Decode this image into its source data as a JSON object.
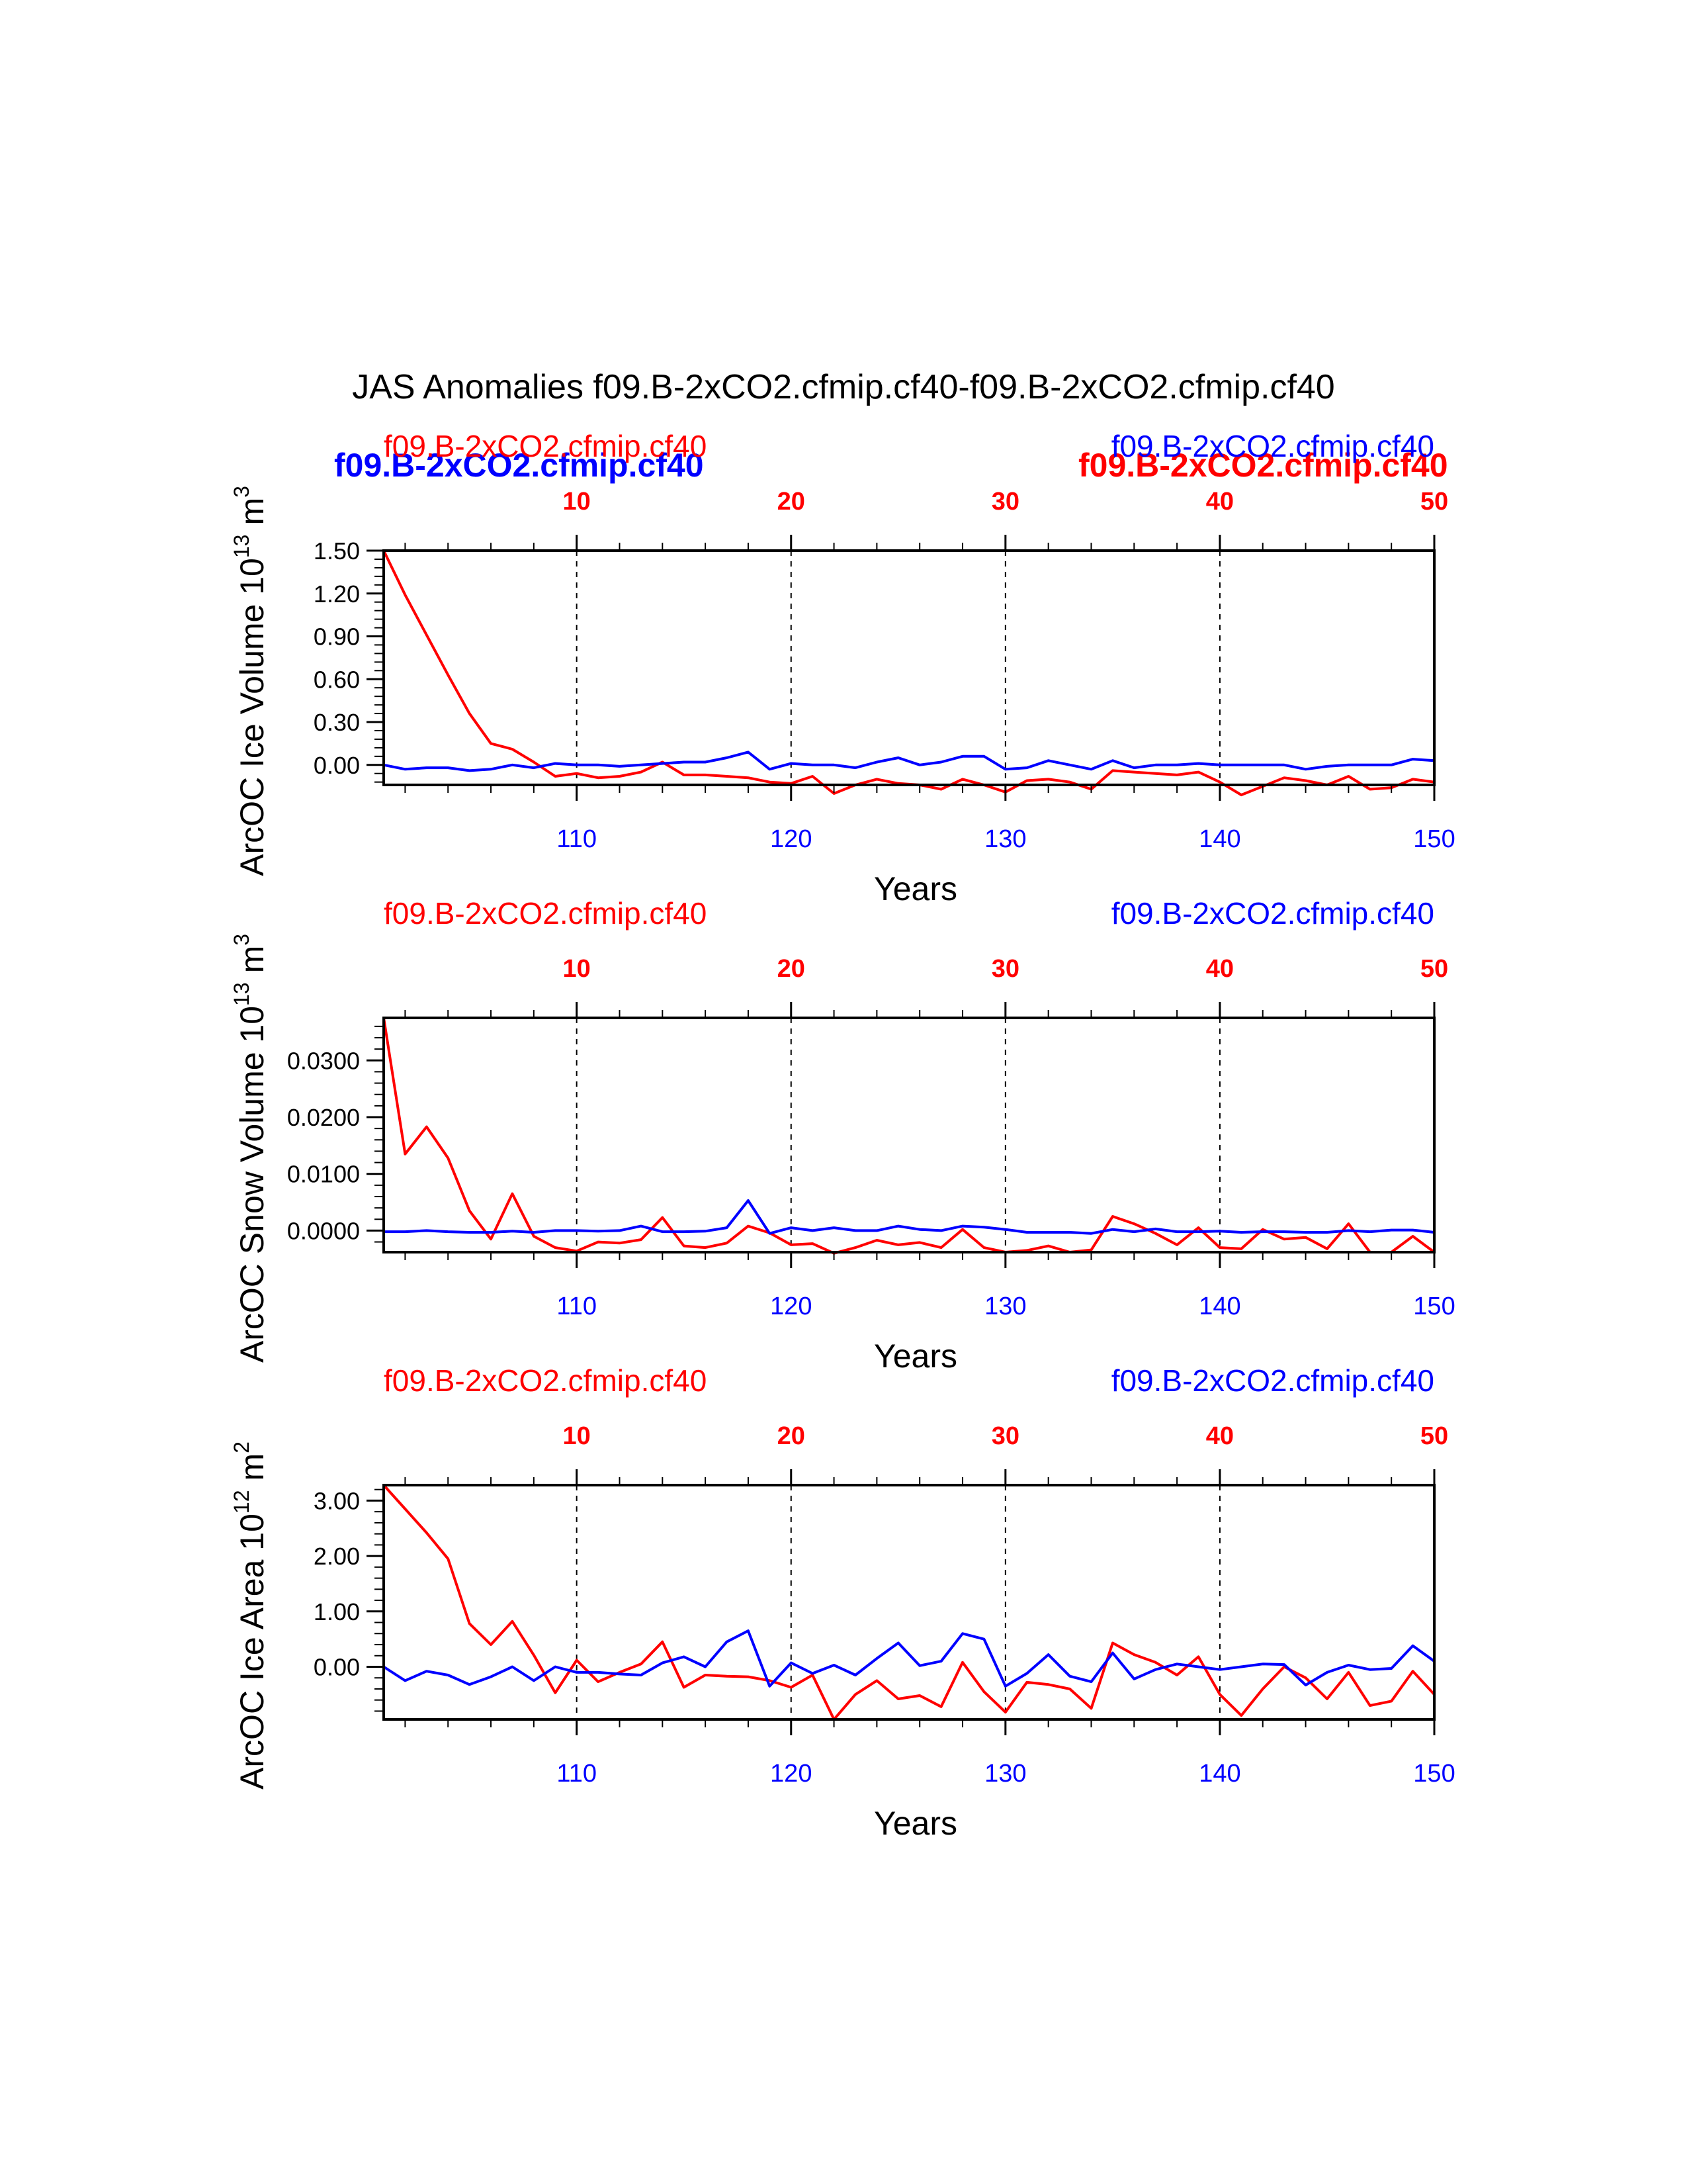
{
  "figure": {
    "title": "JAS Anomalies f09.B-2xCO2.cfmip.cf40-f09.B-2xCO2.cfmip.cf40",
    "colors": {
      "case1": "#ff0000",
      "case2": "#0000ff",
      "axes": "#000000"
    },
    "overlap_legend": {
      "case2_bold": "f09.B-2xCO2.cfmip.cf40",
      "case1_bold": "f09.B-2xCO2.cfmip.cf40"
    }
  },
  "chart_data": [
    {
      "type": "line",
      "ylabel": "ArcOC Ice Volume 10^13 m^3",
      "ylabel_main": "ArcOC Ice Volume 10",
      "ylabel_exp": "13",
      "ylabel_unit": "m",
      "ylabel_unit_exp": "3",
      "xlabel": "Years",
      "case_left": "f09.B-2xCO2.cfmip.cf40",
      "case_right": "f09.B-2xCO2.cfmip.cf40",
      "ylim": [
        -0.14,
        1.5
      ],
      "yticks": [
        1.5,
        1.2,
        0.9,
        0.6,
        0.3,
        0.0
      ],
      "ytick_labels": [
        "1.50",
        "1.20",
        "0.90",
        "0.60",
        "0.30",
        "0.00"
      ],
      "yminor_step": 0.06,
      "xlim_top": [
        1,
        50
      ],
      "xticks_top": [
        "10",
        "20",
        "30",
        "40",
        "50"
      ],
      "xlim_bottom": [
        101,
        150
      ],
      "xticks_bottom": [
        "110",
        "120",
        "130",
        "140",
        "150"
      ],
      "series": [
        {
          "name": "f09.B-2xCO2.cfmip.cf40 (red, years 1-50)",
          "color": "#ff0000",
          "values": [
            1.5,
            1.19,
            0.91,
            0.63,
            0.36,
            0.15,
            0.11,
            0.02,
            -0.08,
            -0.06,
            -0.09,
            -0.08,
            -0.05,
            0.02,
            -0.07,
            -0.07,
            -0.08,
            -0.09,
            -0.12,
            -0.13,
            -0.08,
            -0.2,
            -0.14,
            -0.1,
            -0.13,
            -0.14,
            -0.17,
            -0.1,
            -0.14,
            -0.19,
            -0.11,
            -0.1,
            -0.12,
            -0.17,
            -0.04,
            -0.05,
            -0.06,
            -0.07,
            -0.05,
            -0.12,
            -0.21,
            -0.15,
            -0.09,
            -0.11,
            -0.14,
            -0.08,
            -0.17,
            -0.16,
            -0.1,
            -0.12
          ]
        },
        {
          "name": "f09.B-2xCO2.cfmip.cf40 (blue, years 101-150)",
          "color": "#0000ff",
          "values": [
            0.0,
            -0.03,
            -0.02,
            -0.02,
            -0.04,
            -0.03,
            0.0,
            -0.02,
            0.01,
            0.0,
            0.0,
            -0.01,
            0.0,
            0.01,
            0.02,
            0.02,
            0.05,
            0.09,
            -0.03,
            0.01,
            0.0,
            0.0,
            -0.02,
            0.02,
            0.05,
            0.0,
            0.02,
            0.06,
            0.06,
            -0.03,
            -0.02,
            0.03,
            0.0,
            -0.03,
            0.03,
            -0.02,
            0.0,
            0.0,
            0.01,
            0.0,
            0.0,
            0.0,
            0.0,
            -0.03,
            -0.01,
            0.0,
            0.0,
            0.0,
            0.04,
            0.03
          ]
        }
      ]
    },
    {
      "type": "line",
      "ylabel": "ArcOC Snow Volume 10^13 m^3",
      "ylabel_main": "ArcOC Snow Volume 10",
      "ylabel_exp": "13",
      "ylabel_unit": "m",
      "ylabel_unit_exp": "3",
      "xlabel": "Years",
      "case_left": "f09.B-2xCO2.cfmip.cf40",
      "case_right": "f09.B-2xCO2.cfmip.cf40",
      "ylim": [
        -0.0038,
        0.0375
      ],
      "yticks": [
        0.03,
        0.02,
        0.01,
        0.0
      ],
      "ytick_labels": [
        "0.0300",
        "0.0200",
        "0.0100",
        "0.0000"
      ],
      "yminor_step": 0.002,
      "xlim_top": [
        1,
        50
      ],
      "xticks_top": [
        "10",
        "20",
        "30",
        "40",
        "50"
      ],
      "xlim_bottom": [
        101,
        150
      ],
      "xticks_bottom": [
        "110",
        "120",
        "130",
        "140",
        "150"
      ],
      "series": [
        {
          "name": "f09.B-2xCO2.cfmip.cf40 (red, years 1-50)",
          "color": "#ff0000",
          "values": [
            0.0375,
            0.0135,
            0.0183,
            0.0128,
            0.0035,
            -0.0015,
            0.0065,
            -0.001,
            -0.003,
            -0.0036,
            -0.002,
            -0.0022,
            -0.0016,
            0.0023,
            -0.0027,
            -0.003,
            -0.0022,
            0.0008,
            -0.0004,
            -0.0025,
            -0.0023,
            -0.004,
            -0.003,
            -0.0017,
            -0.0025,
            -0.0021,
            -0.003,
            0.0002,
            -0.003,
            -0.0038,
            -0.0035,
            -0.0027,
            -0.0038,
            -0.0034,
            0.0025,
            0.0012,
            -0.0005,
            -0.0025,
            0.0005,
            -0.003,
            -0.0032,
            0.0002,
            -0.0015,
            -0.0012,
            -0.0032,
            0.0012,
            -0.0038,
            -0.0038,
            -0.001,
            -0.0038
          ]
        },
        {
          "name": "f09.B-2xCO2.cfmip.cf40 (blue, years 101-150)",
          "color": "#0000ff",
          "values": [
            -0.0002,
            -0.0002,
            0.0,
            -0.0002,
            -0.0003,
            -0.0003,
            -0.0001,
            -0.0003,
            0.0,
            0.0,
            -0.0001,
            0.0,
            0.0008,
            -0.0002,
            -0.0002,
            -0.0001,
            0.0005,
            0.0053,
            -0.0005,
            0.0005,
            0.0,
            0.0005,
            0.0,
            0.0,
            0.0008,
            0.0002,
            0.0,
            0.0008,
            0.0006,
            0.0002,
            -0.0003,
            -0.0003,
            -0.0003,
            -0.0005,
            0.0002,
            -0.0002,
            0.0003,
            -0.0002,
            -0.0002,
            -0.0001,
            -0.0003,
            -0.0002,
            -0.0002,
            -0.0003,
            -0.0003,
            0.0,
            -0.0002,
            0.0001,
            0.0001,
            -0.0003
          ]
        }
      ]
    },
    {
      "type": "line",
      "ylabel": "ArcOC Ice Area 10^12 m^2",
      "ylabel_main": "ArcOC Ice Area 10",
      "ylabel_exp": "12",
      "ylabel_unit": "m",
      "ylabel_unit_exp": "2",
      "xlabel": "Years",
      "case_left": "f09.B-2xCO2.cfmip.cf40",
      "case_right": "f09.B-2xCO2.cfmip.cf40",
      "ylim": [
        -0.95,
        3.28
      ],
      "yticks": [
        3.0,
        2.0,
        1.0,
        0.0
      ],
      "ytick_labels": [
        "3.00",
        "2.00",
        "1.00",
        "0.00"
      ],
      "yminor_step": 0.2,
      "xlim_top": [
        1,
        50
      ],
      "xticks_top": [
        "10",
        "20",
        "30",
        "40",
        "50"
      ],
      "xlim_bottom": [
        101,
        150
      ],
      "xticks_bottom": [
        "110",
        "120",
        "130",
        "140",
        "150"
      ],
      "series": [
        {
          "name": "f09.B-2xCO2.cfmip.cf40 (red, years 1-50)",
          "color": "#ff0000",
          "values": [
            3.28,
            2.85,
            2.42,
            1.95,
            0.78,
            0.4,
            0.82,
            0.21,
            -0.47,
            0.12,
            -0.27,
            -0.1,
            0.05,
            0.45,
            -0.37,
            -0.15,
            -0.17,
            -0.18,
            -0.25,
            -0.37,
            -0.15,
            -0.95,
            -0.5,
            -0.25,
            -0.58,
            -0.52,
            -0.72,
            0.08,
            -0.45,
            -0.82,
            -0.28,
            -0.32,
            -0.4,
            -0.75,
            0.43,
            0.22,
            0.08,
            -0.15,
            0.18,
            -0.5,
            -0.88,
            -0.4,
            0.0,
            -0.2,
            -0.58,
            -0.1,
            -0.7,
            -0.62,
            -0.08,
            -0.5
          ]
        },
        {
          "name": "f09.B-2xCO2.cfmip.cf40 (blue, years 101-150)",
          "color": "#0000ff",
          "values": [
            0.0,
            -0.25,
            -0.08,
            -0.15,
            -0.32,
            -0.18,
            0.0,
            -0.25,
            0.0,
            -0.1,
            -0.1,
            -0.13,
            -0.15,
            0.07,
            0.18,
            0.0,
            0.45,
            0.65,
            -0.35,
            0.07,
            -0.12,
            0.03,
            -0.15,
            0.15,
            0.43,
            0.02,
            0.1,
            0.6,
            0.5,
            -0.35,
            -0.12,
            0.22,
            -0.17,
            -0.27,
            0.25,
            -0.22,
            -0.05,
            0.05,
            0.0,
            -0.05,
            0.0,
            0.05,
            0.04,
            -0.33,
            -0.1,
            0.03,
            -0.05,
            -0.03,
            0.38,
            0.1
          ]
        }
      ]
    }
  ]
}
